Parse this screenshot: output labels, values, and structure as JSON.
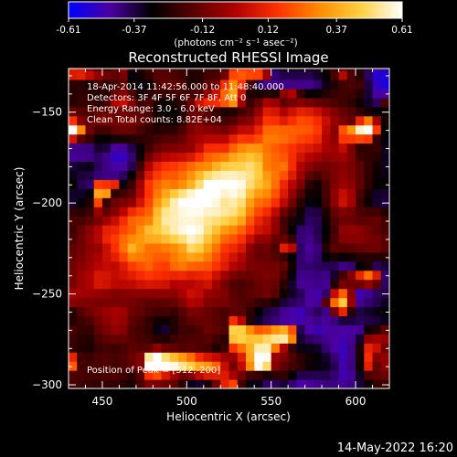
{
  "chart_data": {
    "type": "heatmap",
    "title": "Reconstructed RHESSI Image",
    "xlabel": "Heliocentric X (arcsec)",
    "ylabel": "Heliocentric Y (arcsec)",
    "xlim": [
      430,
      620
    ],
    "ylim": [
      -302,
      -126
    ],
    "xticks": [
      450,
      500,
      550,
      600
    ],
    "yticks": [
      -300,
      -250,
      -200,
      -150
    ],
    "colorbar": {
      "vmin": -0.61,
      "vmax": 0.61,
      "ticks": [
        -0.61,
        -0.37,
        -0.12,
        0.12,
        0.37,
        0.61
      ],
      "tick_labels": [
        "-0.61",
        "-0.37",
        "-0.12",
        "0.12",
        "0.37",
        "0.61"
      ],
      "unit_label": "(photons cm⁻² s⁻¹ asec⁻²)",
      "colormap": [
        "#0000ff",
        "#4b00a0",
        "#000000",
        "#5a0000",
        "#b00000",
        "#ff3000",
        "#ff8a00",
        "#ffd040",
        "#ffffff"
      ]
    },
    "annotations": [
      "18-Apr-2014 11:42:56.000 to 11:48:40.000",
      "Detectors: 3F 4F 5F 6F 7F 8F, Att 0",
      "Energy Range: 3.0 - 6.0 keV",
      "Clean      Total counts: 8.82E+04"
    ],
    "peak_label": "Position of Peak = [512,-200]",
    "peak": {
      "x": 512,
      "y": -200,
      "value": 0.61
    },
    "source": {
      "center": [
        512,
        -200
      ],
      "sigma_major": 48,
      "sigma_minor": 22,
      "angle_deg": 32
    },
    "background_level": -0.3
  },
  "footer": {
    "timestamp": "14-May-2022 16:20"
  }
}
